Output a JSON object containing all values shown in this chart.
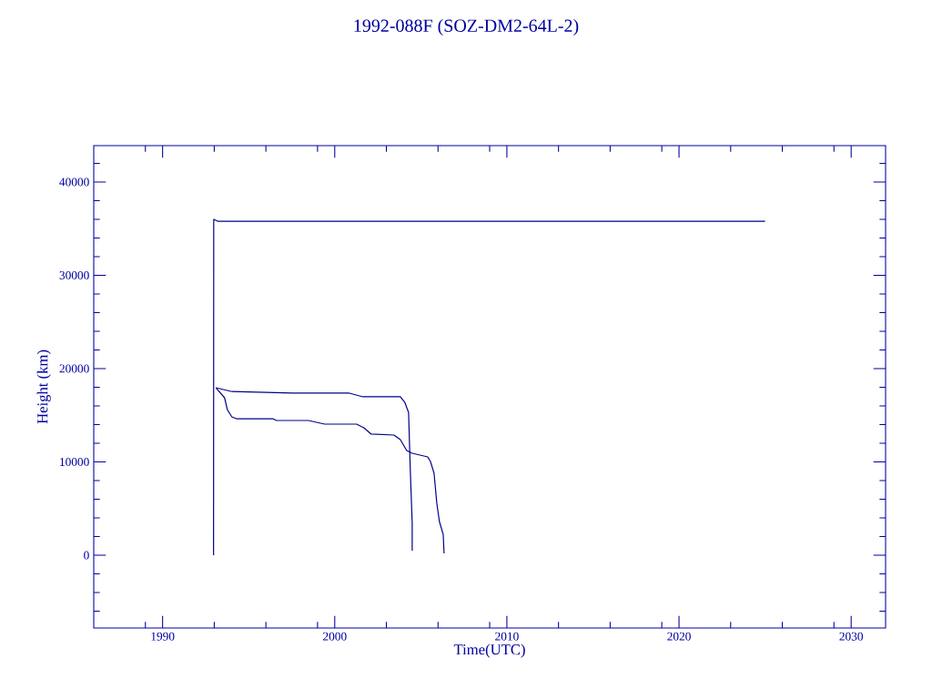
{
  "chart_data": {
    "type": "line",
    "title": "1992-088F (SOZ-DM2-64L-2)",
    "xlabel": "Time(UTC)",
    "ylabel": "Height (km)",
    "xlim": [
      1986,
      2032
    ],
    "ylim": [
      -7800,
      43900
    ],
    "xticks": [
      1990,
      2000,
      2010,
      2020,
      2030,
      {
        "value": 1989,
        "label": null
      },
      {
        "value": 1993,
        "label": null
      },
      {
        "value": 1996,
        "label": null
      },
      {
        "value": 1999,
        "label": null
      },
      {
        "value": 2003,
        "label": null
      },
      {
        "value": 2006,
        "label": null
      },
      {
        "value": 2009,
        "label": null
      },
      {
        "value": 2013,
        "label": null
      },
      {
        "value": 2016,
        "label": null
      },
      {
        "value": 2019,
        "label": null
      },
      {
        "value": 2023,
        "label": null
      },
      {
        "value": 2026,
        "label": null
      },
      {
        "value": 2029,
        "label": null
      }
    ],
    "yticks": [
      0,
      10000,
      20000,
      30000,
      40000,
      {
        "value": -6000,
        "label": null
      },
      {
        "value": -4000,
        "label": null
      },
      {
        "value": -2000,
        "label": null
      },
      {
        "value": 2000,
        "label": null
      },
      {
        "value": 4000,
        "label": null
      },
      {
        "value": 6000,
        "label": null
      },
      {
        "value": 8000,
        "label": null
      },
      {
        "value": 12000,
        "label": null
      },
      {
        "value": 14000,
        "label": null
      },
      {
        "value": 16000,
        "label": null
      },
      {
        "value": 18000,
        "label": null
      },
      {
        "value": 22000,
        "label": null
      },
      {
        "value": 24000,
        "label": null
      },
      {
        "value": 26000,
        "label": null
      },
      {
        "value": 28000,
        "label": null
      },
      {
        "value": 32000,
        "label": null
      },
      {
        "value": 34000,
        "label": null
      },
      {
        "value": 36000,
        "label": null
      },
      {
        "value": 38000,
        "label": null
      },
      {
        "value": 42000,
        "label": null
      }
    ],
    "series": [
      {
        "color": "#00008b",
        "x": [
          1992.96,
          1992.97,
          1993.2,
          2025.0
        ],
        "values": [
          0,
          36000,
          35800,
          35800
        ]
      },
      {
        "color": "#00008b",
        "x": [
          1993.1,
          1993.97,
          1997.57,
          2000.85,
          2001.64,
          2003.81,
          2004.07,
          2004.29,
          2004.39,
          2004.5,
          2004.5
        ],
        "values": [
          17950,
          17560,
          17370,
          17370,
          16980,
          16980,
          16390,
          15300,
          9070,
          3400,
          490
        ]
      },
      {
        "color": "#00008b",
        "x": [
          1993.1,
          1993.6,
          1993.76,
          1994.02,
          1994.29,
          1996.4,
          1996.61,
          1998.47,
          1999.42,
          2001.27,
          2001.69,
          2002.12,
          2003.44,
          2003.81,
          2004.18,
          2004.5,
          2005.4,
          2005.56,
          2005.77,
          2005.93,
          2006.08,
          2006.3,
          2006.35
        ],
        "values": [
          17950,
          16880,
          15610,
          14830,
          14630,
          14630,
          14440,
          14440,
          14050,
          14050,
          13660,
          12980,
          12880,
          12390,
          11220,
          10930,
          10540,
          10050,
          8780,
          5560,
          3610,
          2240,
          200
        ]
      }
    ]
  }
}
